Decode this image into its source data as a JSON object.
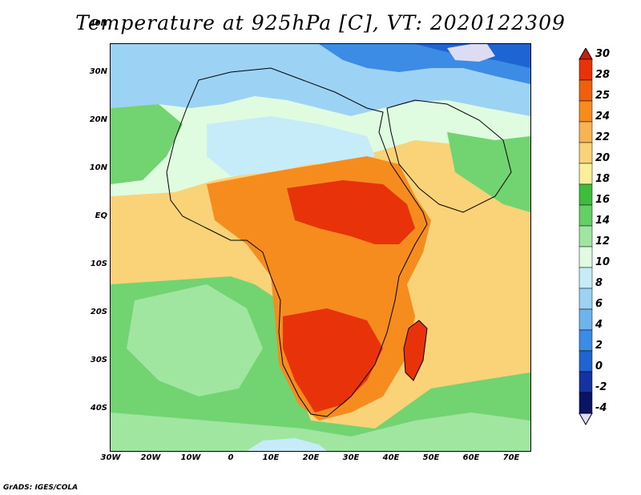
{
  "title": "Temperature at 925hPa [C], VT: 2020122309",
  "credit": "GrADS: IGES/COLA",
  "lat_labels": [
    "40N",
    "30N",
    "20N",
    "10N",
    "EQ",
    "10S",
    "20S",
    "30S",
    "40S"
  ],
  "lon_labels": [
    "30W",
    "20W",
    "10W",
    "0",
    "10E",
    "20E",
    "30E",
    "40E",
    "50E",
    "60E",
    "70E"
  ],
  "colorbar": {
    "labels": [
      "30",
      "28",
      "25",
      "24",
      "22",
      "20",
      "18",
      "16",
      "14",
      "12",
      "10",
      "8",
      "6",
      "4",
      "2",
      "0",
      "-2",
      "-4"
    ],
    "colors": [
      "#c81e0a",
      "#e8320a",
      "#f0600a",
      "#f68c1e",
      "#f8b450",
      "#fad278",
      "#fcef9a",
      "#3ebc3c",
      "#64d064",
      "#a0e6a0",
      "#e0fce0",
      "#c6ecfa",
      "#9cd2f4",
      "#6eb4ec",
      "#3c8ce6",
      "#1e64d2",
      "#1432a0",
      "#0a1464",
      "#dcdcf4"
    ]
  },
  "field_colors": {
    "ocean_green": "#72d470",
    "ocean_light": "#a0e6a0",
    "north_blue": "#9cd2f4",
    "north_deep": "#3c8ce6",
    "sahara_pale": "#e0fce0",
    "warm_yellow": "#fad278",
    "orange": "#f68c1e",
    "red": "#e8320a"
  }
}
